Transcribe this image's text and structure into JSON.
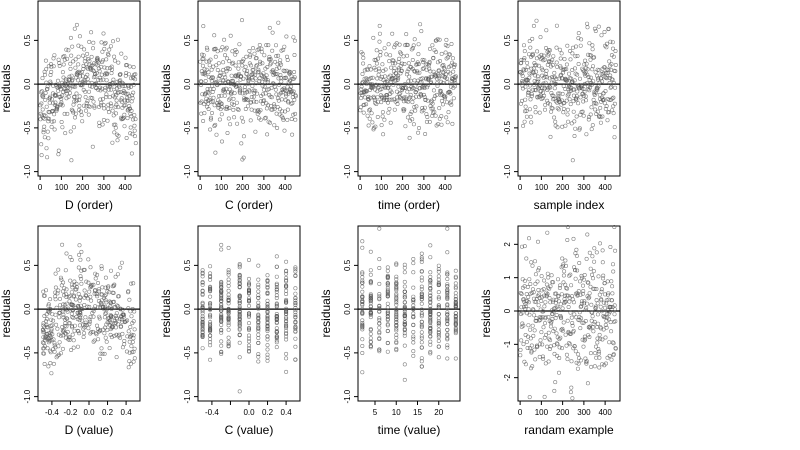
{
  "chart_data": [
    {
      "id": "p1",
      "type": "scatter",
      "title": "",
      "xlabel": "D (order)",
      "ylabel": "residuals",
      "xlim": [
        -10,
        470
      ],
      "ylim": [
        -1.05,
        0.95
      ],
      "x_ticks": [
        0,
        100,
        200,
        300,
        400
      ],
      "y_ticks": [
        -1.0,
        -0.5,
        0.0,
        0.5
      ],
      "y_tick_labels": [
        "-1.0",
        "-0.5",
        "0.0",
        "0.5"
      ],
      "hline": 0,
      "n": 450,
      "x_pattern": "index",
      "y_pattern": "arch"
    },
    {
      "id": "p2",
      "type": "scatter",
      "title": "",
      "xlabel": "C (order)",
      "ylabel": "residuals",
      "xlim": [
        -10,
        470
      ],
      "ylim": [
        -1.05,
        0.95
      ],
      "x_ticks": [
        0,
        100,
        200,
        300,
        400
      ],
      "y_ticks": [
        -1.0,
        -0.5,
        0.0,
        0.5
      ],
      "y_tick_labels": [
        "-1.0",
        "-0.5",
        "0.0",
        "0.5"
      ],
      "hline": 0,
      "n": 450,
      "x_pattern": "index",
      "y_pattern": "noise"
    },
    {
      "id": "p3",
      "type": "scatter",
      "title": "",
      "xlabel": "time (order)",
      "ylabel": "residuals",
      "xlim": [
        -10,
        470
      ],
      "ylim": [
        -1.05,
        0.95
      ],
      "x_ticks": [
        0,
        100,
        200,
        300,
        400
      ],
      "y_ticks": [
        -1.0,
        -0.5,
        0.0,
        0.5
      ],
      "y_tick_labels": [
        "-1.0",
        "-0.5",
        "0.0",
        "0.5"
      ],
      "hline": 0,
      "n": 450,
      "x_pattern": "index",
      "y_pattern": "noise"
    },
    {
      "id": "p4",
      "type": "scatter",
      "title": "",
      "xlabel": "sample index",
      "ylabel": "residuals",
      "xlim": [
        -10,
        470
      ],
      "ylim": [
        -1.05,
        0.95
      ],
      "x_ticks": [
        0,
        100,
        200,
        300,
        400
      ],
      "y_ticks": [
        -1.0,
        -0.5,
        0.0,
        0.5
      ],
      "y_tick_labels": [
        "-1.0",
        "-0.5",
        "0.0",
        "0.5"
      ],
      "hline": 0,
      "n": 450,
      "x_pattern": "index",
      "y_pattern": "noise"
    },
    {
      "id": "p5",
      "type": "scatter",
      "title": "",
      "xlabel": "D (value)",
      "ylabel": "residuals",
      "xlim": [
        -0.55,
        0.55
      ],
      "ylim": [
        -1.05,
        0.95
      ],
      "x_ticks": [
        -0.4,
        -0.2,
        0.0,
        0.2,
        0.4
      ],
      "x_tick_labels": [
        "-0.4",
        "-0.2",
        "0.0",
        "0.2",
        "0.4"
      ],
      "y_ticks": [
        -1.0,
        -0.5,
        0.0,
        0.5
      ],
      "y_tick_labels": [
        "-1.0",
        "-0.5",
        "0.0",
        "0.5"
      ],
      "hline": 0,
      "n": 450,
      "x_pattern": "uniform",
      "y_pattern": "arch"
    },
    {
      "id": "p6",
      "type": "scatter",
      "title": "",
      "xlabel": "C (value)",
      "ylabel": "residuals",
      "xlim": [
        -0.55,
        0.55
      ],
      "ylim": [
        -1.05,
        0.95
      ],
      "x_ticks": [
        -0.4,
        -0.2,
        0.0,
        0.2,
        0.4
      ],
      "x_tick_labels": [
        "-0.4",
        "",
        "0.0",
        "0.2",
        "0.4"
      ],
      "y_ticks": [
        -1.0,
        -0.5,
        0.0,
        0.5
      ],
      "y_tick_labels": [
        "-1.0",
        "-0.5",
        "0.0",
        "0.5"
      ],
      "hline": 0,
      "n": 450,
      "x_pattern": "discrete",
      "x_levels": [
        -0.5,
        -0.42,
        -0.3,
        -0.22,
        -0.1,
        0.0,
        0.1,
        0.2,
        0.3,
        0.4,
        0.5
      ],
      "y_pattern": "noise"
    },
    {
      "id": "p7",
      "type": "scatter",
      "title": "",
      "xlabel": "time (value)",
      "ylabel": "residuals",
      "xlim": [
        1,
        25
      ],
      "ylim": [
        -1.05,
        0.95
      ],
      "x_ticks": [
        5,
        10,
        15,
        20
      ],
      "y_ticks": [
        -1.0,
        -0.5,
        0.0,
        0.5
      ],
      "y_tick_labels": [
        "-1.0",
        "-0.5",
        "0.0",
        "0.5"
      ],
      "hline": 0,
      "n": 450,
      "x_pattern": "discrete",
      "x_levels": [
        2,
        4,
        6,
        8,
        10,
        12,
        14,
        16,
        18,
        20,
        22,
        24
      ],
      "y_pattern": "noise"
    },
    {
      "id": "p8",
      "type": "scatter",
      "title": "",
      "xlabel": "randam example",
      "ylabel": "residuals",
      "xlim": [
        -10,
        470
      ],
      "ylim": [
        -2.7,
        2.55
      ],
      "x_ticks": [
        0,
        100,
        200,
        300,
        400
      ],
      "y_ticks": [
        -2,
        -1,
        0,
        1,
        2
      ],
      "y_tick_labels": [
        "-2",
        "-1",
        "0",
        "1",
        "2"
      ],
      "hline": 0,
      "n": 450,
      "x_pattern": "index",
      "y_pattern": "random"
    }
  ]
}
